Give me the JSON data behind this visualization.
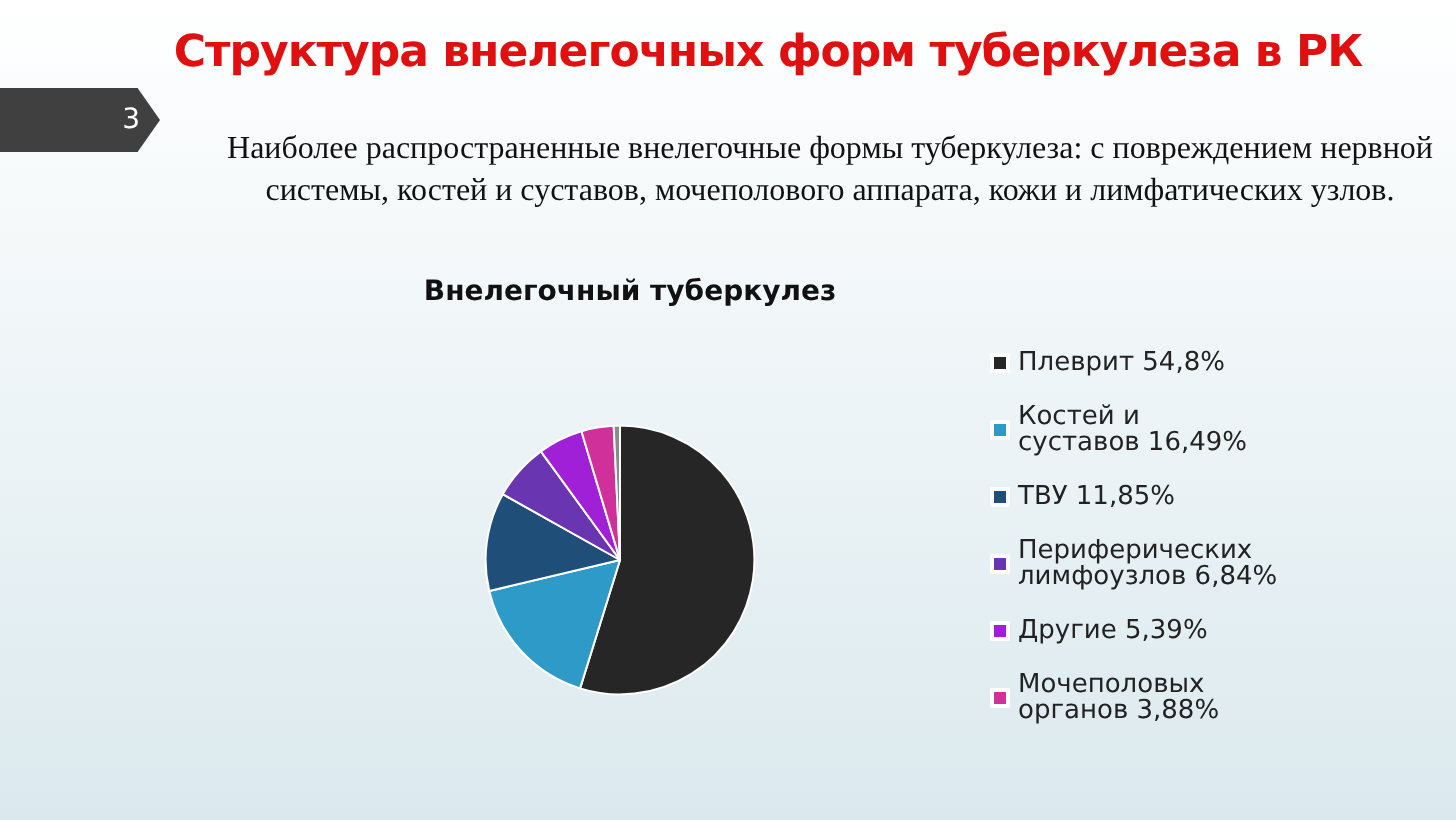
{
  "chart_data": {
    "type": "pie",
    "title": "Структура внелегочных форм туберкулеза в РК",
    "subtitle": "Наиболее распространенные внелегочные формы туберкулеза: с повреждением нервной системы, костей и суставов, мочеполового аппарата, кожи и лимфатических узлов.",
    "annotations": [
      "3",
      "Внелегочный туберкулез"
    ],
    "categories": [
      "Плеврит 54,8%",
      "Костей и суставов 16,49%",
      "ТВУ 11,85%",
      "Периферических лимфоузлов 6,84%",
      "Другие 5,39%",
      "Мочеполовых органов 3,88%",
      null
    ],
    "values": [
      54.8,
      16.49,
      11.85,
      6.84,
      5.39,
      3.88,
      0.75
    ],
    "colors": [
      "#262626",
      "#2e9ac8",
      "#1f4e79",
      "#6a35b0",
      "#a020d8",
      "#d0309a",
      "#8a8a8a"
    ],
    "legend": "right"
  }
}
